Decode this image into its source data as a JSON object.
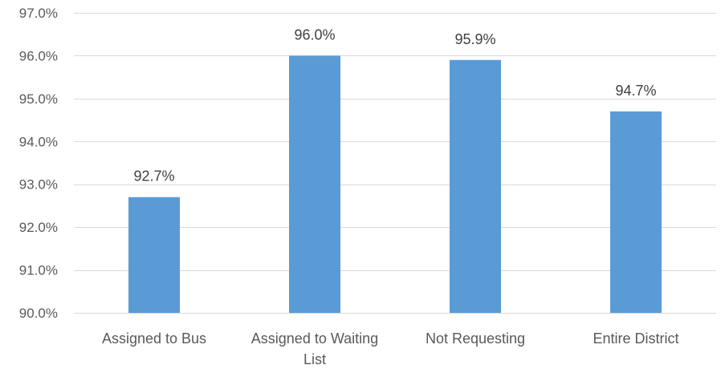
{
  "chart_data": {
    "type": "bar",
    "categories": [
      [
        "Assigned to Bus"
      ],
      [
        "Assigned to Waiting",
        "List"
      ],
      [
        "Not Requesting"
      ],
      [
        "Entire District"
      ]
    ],
    "values": [
      92.7,
      96.0,
      95.9,
      94.7
    ],
    "data_labels": [
      "92.7%",
      "96.0%",
      "95.9%",
      "94.7%"
    ],
    "ylim": [
      90.0,
      97.0
    ],
    "y_ticks": [
      90.0,
      91.0,
      92.0,
      93.0,
      94.0,
      95.0,
      96.0,
      97.0
    ],
    "y_tick_labels": [
      "90.0%",
      "91.0%",
      "92.0%",
      "93.0%",
      "94.0%",
      "95.0%",
      "96.0%",
      "97.0%"
    ],
    "title": "",
    "xlabel": "",
    "ylabel": "",
    "grid": true,
    "legend": "none",
    "colors": {
      "bar": "#5B9BD5",
      "grid": "#D9D9D9",
      "text": "#595959",
      "data_label": "#404040"
    }
  }
}
